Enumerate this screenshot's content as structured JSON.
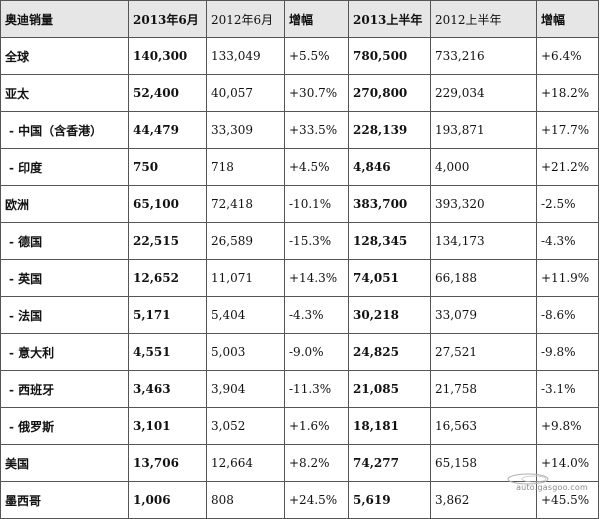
{
  "headers": [
    {
      "label": "奥迪销量",
      "bold": true
    },
    {
      "label": "2013年6月",
      "bold": true
    },
    {
      "label": "2012年6月",
      "bold": false
    },
    {
      "label": "增幅",
      "bold": true
    },
    {
      "label": "2013上半年",
      "bold": true
    },
    {
      "label": "2012上半年",
      "bold": false
    },
    {
      "label": "增幅",
      "bold": true
    }
  ],
  "rows": [
    {
      "region": "全球",
      "sub": false,
      "jun2013": "140,300",
      "jun2012": "133,049",
      "jun_growth": "+5.5%",
      "h1_2013": "780,500",
      "h1_2012": "733,216",
      "h1_growth": "+6.4%"
    },
    {
      "region": "亚太",
      "sub": false,
      "jun2013": "52,400",
      "jun2012": "40,057",
      "jun_growth": "+30.7%",
      "h1_2013": "270,800",
      "h1_2012": "229,034",
      "h1_growth": "+18.2%"
    },
    {
      "region": "- 中国（含香港）",
      "sub": true,
      "jun2013": "44,479",
      "jun2012": "33,309",
      "jun_growth": "+33.5%",
      "h1_2013": "228,139",
      "h1_2012": "193,871",
      "h1_growth": "+17.7%"
    },
    {
      "region": "- 印度",
      "sub": true,
      "jun2013": "750",
      "jun2012": "718",
      "jun_growth": "+4.5%",
      "h1_2013": "4,846",
      "h1_2012": "4,000",
      "h1_growth": "+21.2%"
    },
    {
      "region": "欧洲",
      "sub": false,
      "jun2013": "65,100",
      "jun2012": "72,418",
      "jun_growth": "-10.1%",
      "h1_2013": "383,700",
      "h1_2012": "393,320",
      "h1_growth": "-2.5%"
    },
    {
      "region": "- 德国",
      "sub": true,
      "jun2013": "22,515",
      "jun2012": "26,589",
      "jun_growth": "-15.3%",
      "h1_2013": "128,345",
      "h1_2012": "134,173",
      "h1_growth": "-4.3%"
    },
    {
      "region": "- 英国",
      "sub": true,
      "jun2013": "12,652",
      "jun2012": "11,071",
      "jun_growth": "+14.3%",
      "h1_2013": "74,051",
      "h1_2012": "66,188",
      "h1_growth": "+11.9%"
    },
    {
      "region": "- 法国",
      "sub": true,
      "jun2013": "5,171",
      "jun2012": "5,404",
      "jun_growth": "-4.3%",
      "h1_2013": "30,218",
      "h1_2012": "33,079",
      "h1_growth": "-8.6%"
    },
    {
      "region": "- 意大利",
      "sub": true,
      "jun2013": "4,551",
      "jun2012": "5,003",
      "jun_growth": "-9.0%",
      "h1_2013": "24,825",
      "h1_2012": "27,521",
      "h1_growth": "-9.8%"
    },
    {
      "region": "- 西班牙",
      "sub": true,
      "jun2013": "3,463",
      "jun2012": "3,904",
      "jun_growth": "-11.3%",
      "h1_2013": "21,085",
      "h1_2012": "21,758",
      "h1_growth": "-3.1%"
    },
    {
      "region": "- 俄罗斯",
      "sub": true,
      "jun2013": "3,101",
      "jun2012": "3,052",
      "jun_growth": "+1.6%",
      "h1_2013": "18,181",
      "h1_2012": "16,563",
      "h1_growth": "+9.8%"
    },
    {
      "region": "美国",
      "sub": false,
      "jun2013": "13,706",
      "jun2012": "12,664",
      "jun_growth": "+8.2%",
      "h1_2013": "74,277",
      "h1_2012": "65,158",
      "h1_growth": "+14.0%"
    },
    {
      "region": "墨西哥",
      "sub": false,
      "jun2013": "1,006",
      "jun2012": "808",
      "jun_growth": "+24.5%",
      "h1_2013": "5,619",
      "h1_2012": "3,862",
      "h1_growth": "+45.5%"
    }
  ],
  "watermark": {
    "text": "auto.gasgoo.com",
    "color": "#8a8a8a"
  }
}
